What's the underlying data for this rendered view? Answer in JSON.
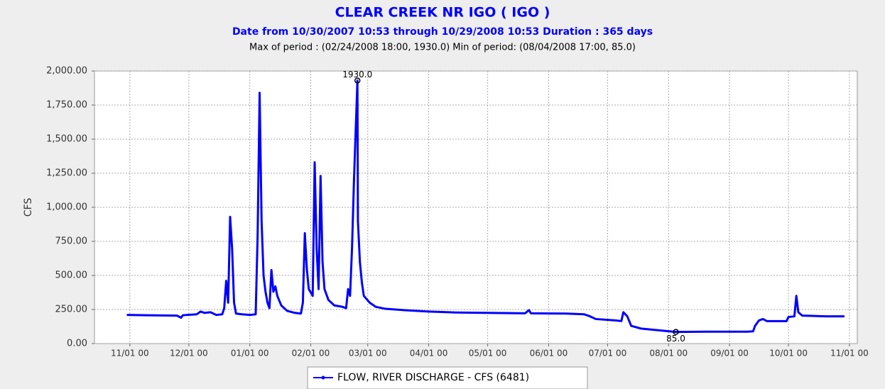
{
  "chart_data": {
    "type": "line",
    "title": "CLEAR CREEK NR IGO ( IGO )",
    "subtitle": "Date from 10/30/2007 10:53 through 10/29/2008 10:53 Duration : 365 days",
    "summary": "Max of period : (02/24/2008 18:00, 1930.0)  Min of period: (08/04/2008 17:00,  85.0)",
    "ylabel": "CFS",
    "xlim": [
      "2007-10-14T00:00",
      "2008-11-05T00:00"
    ],
    "ylim": [
      0,
      2000
    ],
    "yticks": [
      {
        "value": 0,
        "label": "0.00"
      },
      {
        "value": 250,
        "label": "250.00"
      },
      {
        "value": 500,
        "label": "500.00"
      },
      {
        "value": 750,
        "label": "750.00"
      },
      {
        "value": 1000,
        "label": "1,000.00"
      },
      {
        "value": 1250,
        "label": "1,250.00"
      },
      {
        "value": 1500,
        "label": "1,500.00"
      },
      {
        "value": 1750,
        "label": "1,750.00"
      },
      {
        "value": 2000,
        "label": "2,000.00"
      }
    ],
    "xticks": [
      {
        "value": "2007-11-01T00:00",
        "label": "11/01 00"
      },
      {
        "value": "2007-12-01T00:00",
        "label": "12/01 00"
      },
      {
        "value": "2008-01-01T00:00",
        "label": "01/01 00"
      },
      {
        "value": "2008-02-01T00:00",
        "label": "02/01 00"
      },
      {
        "value": "2008-03-01T00:00",
        "label": "03/01 00"
      },
      {
        "value": "2008-04-01T00:00",
        "label": "04/01 00"
      },
      {
        "value": "2008-05-01T00:00",
        "label": "05/01 00"
      },
      {
        "value": "2008-06-01T00:00",
        "label": "06/01 00"
      },
      {
        "value": "2008-07-01T00:00",
        "label": "07/01 00"
      },
      {
        "value": "2008-08-01T00:00",
        "label": "08/01 00"
      },
      {
        "value": "2008-09-01T00:00",
        "label": "09/01 00"
      },
      {
        "value": "2008-10-01T00:00",
        "label": "10/01 00"
      },
      {
        "value": "2008-11-01T00:00",
        "label": "11/01 00"
      }
    ],
    "grid": true,
    "legend": "bottom",
    "x": [
      "2007-10-30T10:53",
      "2007-11-10T00:00",
      "2007-11-25T00:00",
      "2007-11-27T00:00",
      "2007-11-28T00:00",
      "2007-12-05T00:00",
      "2007-12-07T00:00",
      "2007-12-09T00:00",
      "2007-12-12T00:00",
      "2007-12-15T00:00",
      "2007-12-18T00:00",
      "2007-12-19T00:00",
      "2007-12-20T00:00",
      "2007-12-21T00:00",
      "2007-12-22T00:00",
      "2007-12-23T00:00",
      "2007-12-24T00:00",
      "2007-12-25T00:00",
      "2007-12-28T00:00",
      "2008-01-01T00:00",
      "2008-01-04T00:00",
      "2008-01-05T00:00",
      "2008-01-06T00:00",
      "2008-01-07T00:00",
      "2008-01-08T00:00",
      "2008-01-09T00:00",
      "2008-01-10T00:00",
      "2008-01-11T00:00",
      "2008-01-12T00:00",
      "2008-01-13T00:00",
      "2008-01-14T00:00",
      "2008-01-15T00:00",
      "2008-01-17T00:00",
      "2008-01-20T00:00",
      "2008-01-24T00:00",
      "2008-01-27T00:00",
      "2008-01-28T00:00",
      "2008-01-29T00:00",
      "2008-01-30T00:00",
      "2008-01-31T00:00",
      "2008-02-02T00:00",
      "2008-02-03T00:00",
      "2008-02-04T00:00",
      "2008-02-05T00:00",
      "2008-02-06T00:00",
      "2008-02-07T00:00",
      "2008-02-08T00:00",
      "2008-02-10T00:00",
      "2008-02-13T00:00",
      "2008-02-17T00:00",
      "2008-02-19T00:00",
      "2008-02-20T00:00",
      "2008-02-21T00:00",
      "2008-02-22T00:00",
      "2008-02-23T00:00",
      "2008-02-24T18:00",
      "2008-02-25T00:00",
      "2008-02-26T00:00",
      "2008-02-27T00:00",
      "2008-02-28T00:00",
      "2008-03-02T00:00",
      "2008-03-05T00:00",
      "2008-03-10T00:00",
      "2008-03-20T00:00",
      "2008-04-01T00:00",
      "2008-04-15T00:00",
      "2008-05-01T00:00",
      "2008-05-20T00:00",
      "2008-05-22T00:00",
      "2008-05-23T00:00",
      "2008-06-10T00:00",
      "2008-06-19T00:00",
      "2008-06-22T00:00",
      "2008-06-25T00:00",
      "2008-07-05T00:00",
      "2008-07-08T00:00",
      "2008-07-09T00:00",
      "2008-07-11T00:00",
      "2008-07-13T00:00",
      "2008-07-18T00:00",
      "2008-07-25T00:00",
      "2008-08-04T17:00",
      "2008-08-20T00:00",
      "2008-09-10T00:00",
      "2008-09-13T00:00",
      "2008-09-14T00:00",
      "2008-09-16T00:00",
      "2008-09-18T00:00",
      "2008-09-20T00:00",
      "2008-09-30T00:00",
      "2008-10-01T00:00",
      "2008-10-04T00:00",
      "2008-10-05T00:00",
      "2008-10-06T00:00",
      "2008-10-08T00:00",
      "2008-10-20T00:00",
      "2008-10-29T10:53"
    ],
    "series": [
      {
        "name": "FLOW, RIVER DISCHARGE - CFS (6481)",
        "color": "#0000ff",
        "values": [
          210,
          208,
          205,
          190,
          208,
          215,
          235,
          225,
          230,
          210,
          215,
          260,
          460,
          300,
          930,
          700,
          300,
          220,
          215,
          210,
          215,
          800,
          1840,
          900,
          500,
          380,
          300,
          260,
          540,
          380,
          420,
          350,
          280,
          240,
          225,
          220,
          300,
          810,
          550,
          400,
          350,
          1330,
          700,
          400,
          1230,
          600,
          400,
          320,
          280,
          270,
          260,
          400,
          350,
          700,
          1200,
          1930,
          900,
          600,
          450,
          350,
          300,
          270,
          255,
          245,
          235,
          228,
          225,
          222,
          245,
          222,
          220,
          215,
          200,
          180,
          170,
          165,
          230,
          200,
          130,
          110,
          100,
          85,
          87,
          87,
          90,
          130,
          170,
          180,
          165,
          165,
          195,
          200,
          350,
          230,
          205,
          200,
          200
        ]
      }
    ],
    "annotations": [
      {
        "text": "1930.0",
        "x": "2008-02-24T18:00",
        "y": 1930
      },
      {
        "text": "85.0",
        "x": "2008-08-04T17:00",
        "y": 85
      }
    ]
  }
}
